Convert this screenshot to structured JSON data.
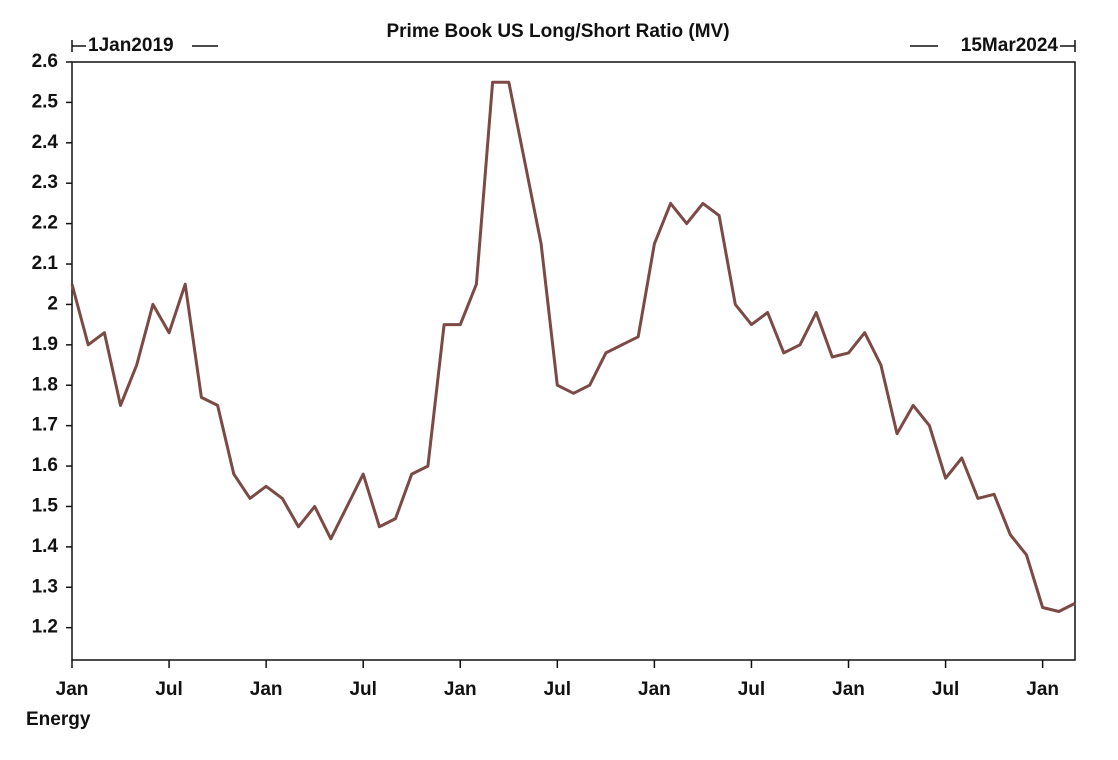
{
  "chart_data": {
    "type": "line",
    "title": "Prime Book US Long/Short Ratio (MV)",
    "range_start": "1Jan2019",
    "range_end": "15Mar2024",
    "x": [
      "2019-01",
      "2019-02",
      "2019-03",
      "2019-04",
      "2019-05",
      "2019-06",
      "2019-07",
      "2019-08",
      "2019-09",
      "2019-10",
      "2019-11",
      "2019-12",
      "2020-01",
      "2020-02",
      "2020-03",
      "2020-04",
      "2020-05",
      "2020-06",
      "2020-07",
      "2020-08",
      "2020-09",
      "2020-10",
      "2020-11",
      "2020-12",
      "2021-01",
      "2021-02",
      "2021-03",
      "2021-04",
      "2021-05",
      "2021-06",
      "2021-07",
      "2021-08",
      "2021-09",
      "2021-10",
      "2021-11",
      "2021-12",
      "2022-01",
      "2022-02",
      "2022-03",
      "2022-04",
      "2022-05",
      "2022-06",
      "2022-07",
      "2022-08",
      "2022-09",
      "2022-10",
      "2022-11",
      "2022-12",
      "2023-01",
      "2023-02",
      "2023-03",
      "2023-04",
      "2023-05",
      "2023-06",
      "2023-07",
      "2023-08",
      "2023-09",
      "2023-10",
      "2023-11",
      "2023-12",
      "2024-01",
      "2024-02",
      "2024-03"
    ],
    "series": [
      {
        "name": "Energy",
        "color": "#7b4a45",
        "values": [
          2.05,
          1.9,
          1.93,
          1.75,
          1.85,
          2.0,
          1.93,
          2.05,
          1.77,
          1.75,
          1.58,
          1.52,
          1.55,
          1.52,
          1.45,
          1.5,
          1.42,
          1.5,
          1.58,
          1.45,
          1.47,
          1.58,
          1.6,
          1.95,
          1.95,
          2.05,
          2.55,
          2.55,
          2.35,
          2.15,
          1.8,
          1.78,
          1.8,
          1.88,
          1.9,
          1.92,
          2.15,
          2.25,
          2.2,
          2.25,
          2.22,
          2.0,
          1.95,
          1.98,
          1.88,
          1.9,
          1.98,
          1.87,
          1.88,
          1.93,
          1.85,
          1.68,
          1.75,
          1.7,
          1.57,
          1.62,
          1.52,
          1.53,
          1.43,
          1.38,
          1.25,
          1.24,
          1.26
        ]
      }
    ],
    "xlim": [
      "2019-01",
      "2024-03"
    ],
    "xticks": [
      {
        "value": "2019-01",
        "label": "Jan"
      },
      {
        "value": "2019-07",
        "label": "Jul"
      },
      {
        "value": "2020-01",
        "label": "Jan"
      },
      {
        "value": "2020-07",
        "label": "Jul"
      },
      {
        "value": "2021-01",
        "label": "Jan"
      },
      {
        "value": "2021-07",
        "label": "Jul"
      },
      {
        "value": "2022-01",
        "label": "Jan"
      },
      {
        "value": "2022-07",
        "label": "Jul"
      },
      {
        "value": "2023-01",
        "label": "Jan"
      },
      {
        "value": "2023-07",
        "label": "Jul"
      },
      {
        "value": "2024-01",
        "label": "Jan"
      }
    ],
    "ylim": [
      1.12,
      2.6
    ],
    "yticks": [
      1.2,
      1.3,
      1.4,
      1.5,
      1.6,
      1.7,
      1.8,
      1.9,
      2,
      2.1,
      2.2,
      2.3,
      2.4,
      2.5,
      2.6
    ],
    "grid": false
  }
}
